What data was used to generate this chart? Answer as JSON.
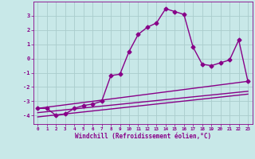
{
  "xlabel": "Windchill (Refroidissement éolien,°C)",
  "xlim": [
    -0.5,
    23.5
  ],
  "ylim": [
    -4.6,
    4.0
  ],
  "yticks": [
    -4,
    -3,
    -2,
    -1,
    0,
    1,
    2,
    3
  ],
  "xticks": [
    0,
    1,
    2,
    3,
    4,
    5,
    6,
    7,
    8,
    9,
    10,
    11,
    12,
    13,
    14,
    15,
    16,
    17,
    18,
    19,
    20,
    21,
    22,
    23
  ],
  "bg_color": "#c8e8e8",
  "grid_color": "#aacccc",
  "line_color": "#880088",
  "line1_x": [
    0,
    1,
    2,
    3,
    4,
    5,
    6,
    7,
    8,
    9,
    10,
    11,
    12,
    13,
    14,
    15,
    16,
    17,
    18,
    19,
    20,
    21,
    22,
    23
  ],
  "line1_y": [
    -3.5,
    -3.5,
    -4.0,
    -3.9,
    -3.5,
    -3.3,
    -3.2,
    -3.0,
    -1.2,
    -1.1,
    0.5,
    1.7,
    2.2,
    2.5,
    3.5,
    3.3,
    3.1,
    0.8,
    -0.4,
    -0.5,
    -0.3,
    -0.1,
    1.3,
    -1.6
  ],
  "line2_x": [
    0,
    23
  ],
  "line2_y": [
    -3.5,
    -1.6
  ],
  "line3_x": [
    0,
    23
  ],
  "line3_y": [
    -3.8,
    -2.3
  ],
  "line4_x": [
    0,
    23
  ],
  "line4_y": [
    -4.1,
    -2.5
  ],
  "marker": "D",
  "marker_size": 2.5,
  "linewidth": 1.0
}
